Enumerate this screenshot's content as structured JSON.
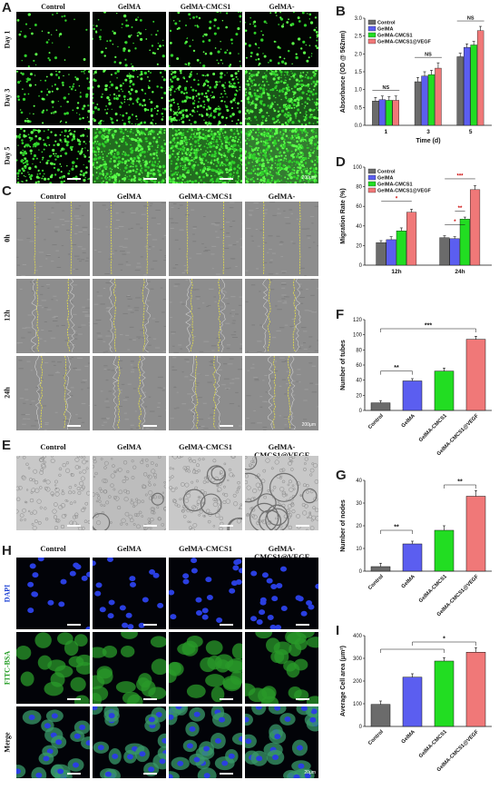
{
  "panels": {
    "A": "A",
    "B": "B",
    "C": "C",
    "D": "D",
    "E": "E",
    "F": "F",
    "G": "G",
    "H": "H",
    "I": "I"
  },
  "groups": [
    "Control",
    "GelMA",
    "GelMA-CMCS1",
    "GelMA-CMCS1@VEGF"
  ],
  "groups_A": [
    "Control",
    "GelMA",
    "GelMA-CMCS1",
    "GelMA-\nCMCS1@VEGF"
  ],
  "groups_header": [
    "Control",
    "GelMA",
    "GelMA-CMCS1",
    "GelMA-\nCMCS1@VEGF"
  ],
  "rows_A": [
    "Day 1",
    "Day 3",
    "Day 5"
  ],
  "rows_C": [
    "0h",
    "12h",
    "24h"
  ],
  "rows_H": [
    "DAPI",
    "FITC-BSA",
    "Merge"
  ],
  "scalebars": {
    "A": "200μm",
    "C": "200μm",
    "H": "20μm"
  },
  "colors": {
    "control": "#6b6b6b",
    "gelma": "#5b5ef0",
    "cmcs": "#22dd22",
    "vegf": "#f07878"
  },
  "chart_data": [
    {
      "panel": "B",
      "type": "bar",
      "categories": [
        "1",
        "3",
        "5"
      ],
      "xlabel": "Time (d)",
      "ylabel": "Absorbance (OD @ 562nm)",
      "ylim": [
        0,
        3.0
      ],
      "yticks": [
        0,
        0.5,
        1.0,
        1.5,
        2.0,
        2.5,
        3.0
      ],
      "series": [
        {
          "name": "Control",
          "values": [
            0.68,
            1.22,
            1.92
          ],
          "err": [
            0.1,
            0.12,
            0.1
          ]
        },
        {
          "name": "GelMA",
          "values": [
            0.72,
            1.38,
            2.18
          ],
          "err": [
            0.1,
            0.12,
            0.1
          ]
        },
        {
          "name": "GelMA-CMCS1",
          "values": [
            0.7,
            1.42,
            2.25
          ],
          "err": [
            0.1,
            0.12,
            0.1
          ]
        },
        {
          "name": "GelMA-CMCS1@VEGF",
          "values": [
            0.7,
            1.6,
            2.65
          ],
          "err": [
            0.12,
            0.15,
            0.12
          ]
        }
      ],
      "annotations": [
        "NS",
        "NS",
        "NS"
      ],
      "legend": "top-left"
    },
    {
      "panel": "D",
      "type": "bar",
      "categories": [
        "12h",
        "24h"
      ],
      "xlabel": "",
      "ylabel": "Migration Rate (%)",
      "ylim": [
        0,
        100
      ],
      "yticks": [
        0,
        20,
        40,
        60,
        80,
        100
      ],
      "series": [
        {
          "name": "Control",
          "values": [
            23,
            28
          ],
          "err": [
            2,
            2
          ]
        },
        {
          "name": "GelMA",
          "values": [
            26,
            27
          ],
          "err": [
            3,
            2
          ]
        },
        {
          "name": "GelMA-CMCS1",
          "values": [
            35,
            47
          ],
          "err": [
            3,
            2
          ]
        },
        {
          "name": "GelMA-CMCS1@VEGF",
          "values": [
            54,
            77
          ],
          "err": [
            3,
            4
          ]
        }
      ],
      "annotations": [
        "*",
        "*",
        "**",
        "***"
      ],
      "legend": "top-left"
    },
    {
      "panel": "F",
      "type": "bar",
      "categories": [
        "Control",
        "GelMA",
        "GelMA-CMCS1",
        "GelMA-CMCS1@VEGF"
      ],
      "ylabel": "Number of tubes",
      "ylim": [
        0,
        120
      ],
      "yticks": [
        0,
        20,
        40,
        60,
        80,
        100,
        120
      ],
      "values": [
        10,
        39,
        52,
        94
      ],
      "err": [
        3,
        3,
        4,
        4
      ],
      "annotations": [
        "**",
        "***"
      ]
    },
    {
      "panel": "G",
      "type": "bar",
      "categories": [
        "Control",
        "GelMA",
        "GelMA-CMCS1",
        "GelMA-CMCS1@VEGF"
      ],
      "ylabel": "Number of nodes",
      "ylim": [
        0,
        40
      ],
      "yticks": [
        0,
        10,
        20,
        30,
        40
      ],
      "values": [
        2,
        12,
        18,
        33
      ],
      "err": [
        1.5,
        1.2,
        2,
        2.5
      ],
      "annotations": [
        "**",
        "**"
      ]
    },
    {
      "panel": "I",
      "type": "bar",
      "categories": [
        "Control",
        "GelMA",
        "GelMA-CMCS1",
        "GelMA-CMCS1@VEGF"
      ],
      "ylabel": "Average Cell area (μm²)",
      "ylim": [
        0,
        400
      ],
      "yticks": [
        0,
        100,
        200,
        300,
        400
      ],
      "values": [
        97,
        217,
        288,
        327
      ],
      "err": [
        15,
        15,
        15,
        20
      ],
      "annotations": [
        "*"
      ]
    }
  ]
}
